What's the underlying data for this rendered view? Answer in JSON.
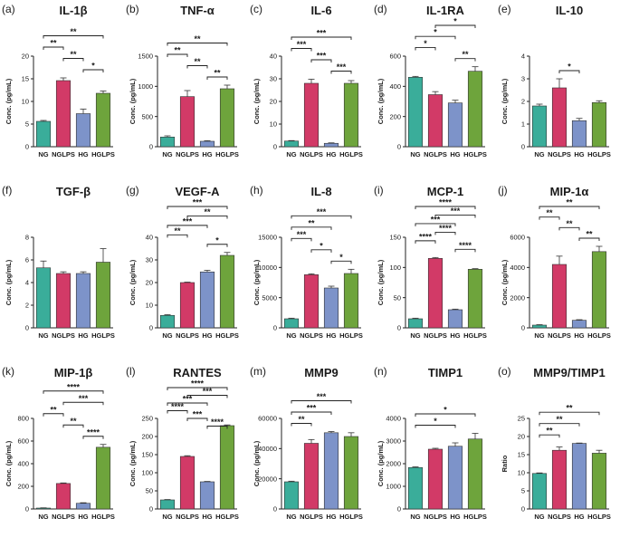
{
  "colors": {
    "NG": "#3aad9a",
    "NGLPS": "#d23a67",
    "HG": "#7d93c9",
    "HGLPS": "#6ea43c"
  },
  "chart_data": [
    {
      "label": "(a)",
      "title": "IL-1β",
      "type": "bar",
      "ylabel": "Conc. (pg/mL)",
      "categories": [
        "NG",
        "NGLPS",
        "HG",
        "HGLPS"
      ],
      "values": [
        5.6,
        14.6,
        7.3,
        11.8
      ],
      "errors": [
        0.2,
        0.6,
        1.0,
        0.5
      ],
      "ylim": [
        0,
        20
      ],
      "yticks": [
        "0",
        "5",
        "10",
        "15",
        "20"
      ],
      "sig": [
        {
          "a": 0,
          "b": 3,
          "text": "**"
        },
        {
          "a": 0,
          "b": 1,
          "text": "**"
        },
        {
          "a": 1,
          "b": 2,
          "text": "**"
        },
        {
          "a": 2,
          "b": 3,
          "text": "*"
        }
      ]
    },
    {
      "label": "(b)",
      "title": "TNF-α",
      "type": "bar",
      "ylabel": "Conc. (pg/mL)",
      "categories": [
        "NG",
        "NGLPS",
        "HG",
        "HGLPS"
      ],
      "values": [
        160,
        830,
        90,
        960
      ],
      "errors": [
        20,
        100,
        10,
        60
      ],
      "ylim": [
        0,
        1500
      ],
      "yticks": [
        "0",
        "500",
        "1000",
        "1500"
      ],
      "sig": [
        {
          "a": 0,
          "b": 3,
          "text": "**"
        },
        {
          "a": 0,
          "b": 1,
          "text": "**"
        },
        {
          "a": 1,
          "b": 2,
          "text": "**"
        },
        {
          "a": 2,
          "b": 3,
          "text": "**"
        }
      ]
    },
    {
      "label": "(c)",
      "title": "IL-6",
      "type": "bar",
      "ylabel": "Conc. (pg/mL)",
      "categories": [
        "NG",
        "NGLPS",
        "HG",
        "HGLPS"
      ],
      "values": [
        2.5,
        28,
        1.5,
        28
      ],
      "errors": [
        0.2,
        1.8,
        0.2,
        1.2
      ],
      "ylim": [
        0,
        40
      ],
      "yticks": [
        "0",
        "10",
        "20",
        "30",
        "40"
      ],
      "sig": [
        {
          "a": 0,
          "b": 3,
          "text": "***"
        },
        {
          "a": 0,
          "b": 1,
          "text": "***"
        },
        {
          "a": 1,
          "b": 2,
          "text": "***"
        },
        {
          "a": 2,
          "b": 3,
          "text": "***"
        }
      ]
    },
    {
      "label": "(d)",
      "title": "IL-1RA",
      "type": "bar",
      "ylabel": "Conc. (pg/mL)",
      "categories": [
        "NG",
        "NGLPS",
        "HG",
        "HGLPS"
      ],
      "values": [
        460,
        345,
        290,
        500
      ],
      "errors": [
        6,
        20,
        18,
        30
      ],
      "ylim": [
        0,
        600
      ],
      "yticks": [
        "0",
        "200",
        "400",
        "600"
      ],
      "sig": [
        {
          "a": 1,
          "b": 3,
          "text": "*"
        },
        {
          "a": 0,
          "b": 2,
          "text": "*"
        },
        {
          "a": 0,
          "b": 1,
          "text": "*"
        },
        {
          "a": 2,
          "b": 3,
          "text": "**"
        }
      ]
    },
    {
      "label": "(e)",
      "title": "IL-10",
      "type": "bar",
      "ylabel": "Conc. (pg/mL)",
      "categories": [
        "NG",
        "NGLPS",
        "HG",
        "HGLPS"
      ],
      "values": [
        1.8,
        2.6,
        1.15,
        1.95
      ],
      "errors": [
        0.08,
        0.4,
        0.1,
        0.08
      ],
      "ylim": [
        0,
        4
      ],
      "yticks": [
        "0",
        "1",
        "2",
        "3",
        "4"
      ],
      "sig": [
        {
          "a": 1,
          "b": 2,
          "text": "*"
        }
      ]
    },
    {
      "label": "(f)",
      "title": "TGF-β",
      "type": "bar",
      "ylabel": "Conc. (pg/mL)",
      "categories": [
        "NG",
        "NGLPS",
        "HG",
        "HGLPS"
      ],
      "values": [
        5.3,
        4.8,
        4.8,
        5.8
      ],
      "errors": [
        0.6,
        0.15,
        0.15,
        1.2
      ],
      "ylim": [
        0,
        8
      ],
      "yticks": [
        "0",
        "2",
        "4",
        "6",
        "8"
      ],
      "sig": []
    },
    {
      "label": "(g)",
      "title": "VEGF-A",
      "type": "bar",
      "ylabel": "Conc. (pg/mL)",
      "categories": [
        "NG",
        "NGLPS",
        "HG",
        "HGLPS"
      ],
      "values": [
        5.5,
        20,
        24.7,
        32
      ],
      "errors": [
        0.3,
        0.2,
        0.7,
        1.3
      ],
      "ylim": [
        0,
        40
      ],
      "yticks": [
        "0",
        "10",
        "20",
        "30",
        "40"
      ],
      "sig": [
        {
          "a": 0,
          "b": 3,
          "text": "***"
        },
        {
          "a": 1,
          "b": 3,
          "text": "**"
        },
        {
          "a": 0,
          "b": 2,
          "text": "***"
        },
        {
          "a": 0,
          "b": 1,
          "text": "**"
        },
        {
          "a": 2,
          "b": 3,
          "text": "*"
        }
      ]
    },
    {
      "label": "(h)",
      "title": "IL-8",
      "type": "bar",
      "ylabel": "Conc. (pg/mL)",
      "categories": [
        "NG",
        "NGLPS",
        "HG",
        "HGLPS"
      ],
      "values": [
        1500,
        8800,
        6600,
        9000
      ],
      "errors": [
        100,
        150,
        300,
        700
      ],
      "ylim": [
        0,
        15000
      ],
      "yticks": [
        "0",
        "5000",
        "10000",
        "15000"
      ],
      "sig": [
        {
          "a": 0,
          "b": 3,
          "text": "***"
        },
        {
          "a": 0,
          "b": 2,
          "text": "**"
        },
        {
          "a": 0,
          "b": 1,
          "text": "***"
        },
        {
          "a": 1,
          "b": 2,
          "text": "*"
        },
        {
          "a": 2,
          "b": 3,
          "text": "*"
        }
      ]
    },
    {
      "label": "(i)",
      "title": "MCP-1",
      "type": "bar",
      "ylabel": "Conc. (pg/mL)",
      "categories": [
        "NG",
        "NGLPS",
        "HG",
        "HGLPS"
      ],
      "values": [
        15,
        115,
        30,
        97
      ],
      "errors": [
        1,
        1.5,
        1,
        1
      ],
      "ylim": [
        0,
        150
      ],
      "yticks": [
        "0",
        "50",
        "100",
        "150"
      ],
      "sig": [
        {
          "a": 0,
          "b": 3,
          "text": "****"
        },
        {
          "a": 1,
          "b": 3,
          "text": "***"
        },
        {
          "a": 0,
          "b": 2,
          "text": "***"
        },
        {
          "a": 1,
          "b": 2,
          "text": "****"
        },
        {
          "a": 0,
          "b": 1,
          "text": "****"
        },
        {
          "a": 2,
          "b": 3,
          "text": "****"
        }
      ]
    },
    {
      "label": "(j)",
      "title": "MIP-1α",
      "type": "bar",
      "ylabel": "Conc. (pg/mL)",
      "categories": [
        "NG",
        "NGLPS",
        "HG",
        "HGLPS"
      ],
      "values": [
        180,
        4200,
        500,
        5050
      ],
      "errors": [
        30,
        550,
        40,
        350
      ],
      "ylim": [
        0,
        6000
      ],
      "yticks": [
        "0",
        "2000",
        "4000",
        "6000"
      ],
      "sig": [
        {
          "a": 0,
          "b": 3,
          "text": "**"
        },
        {
          "a": 0,
          "b": 1,
          "text": "**"
        },
        {
          "a": 1,
          "b": 2,
          "text": "**"
        },
        {
          "a": 2,
          "b": 3,
          "text": "**"
        }
      ]
    },
    {
      "label": "(k)",
      "title": "MIP-1β",
      "type": "bar",
      "ylabel": "Conc. (pg/mL)",
      "categories": [
        "NG",
        "NGLPS",
        "HG",
        "HGLPS"
      ],
      "values": [
        8,
        225,
        50,
        545
      ],
      "errors": [
        2,
        5,
        5,
        25
      ],
      "ylim": [
        0,
        800
      ],
      "yticks": [
        "0",
        "200",
        "400",
        "600",
        "800"
      ],
      "sig": [
        {
          "a": 0,
          "b": 3,
          "text": "****"
        },
        {
          "a": 1,
          "b": 3,
          "text": "***"
        },
        {
          "a": 0,
          "b": 1,
          "text": "**"
        },
        {
          "a": 1,
          "b": 2,
          "text": "**"
        },
        {
          "a": 2,
          "b": 3,
          "text": "****"
        }
      ]
    },
    {
      "label": "(l)",
      "title": "RANTES",
      "type": "bar",
      "ylabel": "Conc. (pg/mL)",
      "categories": [
        "NG",
        "NGLPS",
        "HG",
        "HGLPS"
      ],
      "values": [
        25,
        145,
        75,
        230
      ],
      "errors": [
        1,
        2,
        1,
        2
      ],
      "ylim": [
        0,
        250
      ],
      "yticks": [
        "0",
        "50",
        "100",
        "150",
        "200",
        "250"
      ],
      "sig": [
        {
          "a": 0,
          "b": 3,
          "text": "****"
        },
        {
          "a": 1,
          "b": 3,
          "text": "***"
        },
        {
          "a": 0,
          "b": 2,
          "text": "***"
        },
        {
          "a": 0,
          "b": 1,
          "text": "****"
        },
        {
          "a": 1,
          "b": 2,
          "text": "***"
        },
        {
          "a": 2,
          "b": 3,
          "text": "****"
        }
      ]
    },
    {
      "label": "(m)",
      "title": "MMP9",
      "type": "bar",
      "ylabel": "Conc. (pg/mL)",
      "categories": [
        "NG",
        "NGLPS",
        "HG",
        "HGLPS"
      ],
      "values": [
        18000,
        43500,
        50500,
        48000
      ],
      "errors": [
        400,
        2500,
        800,
        2500
      ],
      "ylim": [
        0,
        60000
      ],
      "yticks": [
        "0",
        "20000",
        "40000",
        "60000"
      ],
      "sig": [
        {
          "a": 0,
          "b": 3,
          "text": "***"
        },
        {
          "a": 0,
          "b": 2,
          "text": "***"
        },
        {
          "a": 0,
          "b": 1,
          "text": "**"
        }
      ]
    },
    {
      "label": "(n)",
      "title": "TIMP1",
      "type": "bar",
      "ylabel": "Conc. (pg/mL)",
      "categories": [
        "NG",
        "NGLPS",
        "HG",
        "HGLPS"
      ],
      "values": [
        1830,
        2640,
        2770,
        3090
      ],
      "errors": [
        30,
        40,
        150,
        250
      ],
      "ylim": [
        0,
        4000
      ],
      "yticks": [
        "0",
        "1000",
        "2000",
        "3000",
        "4000"
      ],
      "sig": [
        {
          "a": 0,
          "b": 3,
          "text": "*"
        },
        {
          "a": 0,
          "b": 2,
          "text": "*"
        }
      ]
    },
    {
      "label": "(o)",
      "title": "MMP9/TIMP1",
      "type": "bar",
      "ylabel": "Ratio",
      "categories": [
        "NG",
        "NGLPS",
        "HG",
        "HGLPS"
      ],
      "values": [
        9.8,
        16.2,
        18.1,
        15.4
      ],
      "errors": [
        0.15,
        0.9,
        0.1,
        0.8
      ],
      "ylim": [
        0,
        25
      ],
      "yticks": [
        "0",
        "5",
        "10",
        "15",
        "20",
        "25"
      ],
      "sig": [
        {
          "a": 0,
          "b": 3,
          "text": "**"
        },
        {
          "a": 0,
          "b": 2,
          "text": "**"
        },
        {
          "a": 0,
          "b": 1,
          "text": "**"
        }
      ]
    }
  ]
}
